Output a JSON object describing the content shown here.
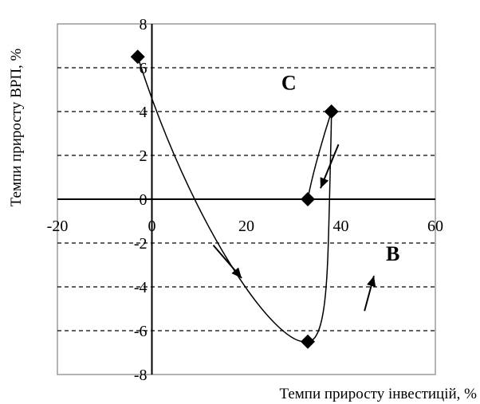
{
  "chart_data": {
    "type": "scatter",
    "xlabel": "Темпи приросту інвестицій, %",
    "ylabel": "Темпи приросту ВРП, %",
    "xlim": [
      -20,
      60
    ],
    "ylim": [
      -8,
      8
    ],
    "x_ticks": [
      "-20",
      "0",
      "20",
      "40",
      "60"
    ],
    "y_ticks": [
      "8",
      "6",
      "4",
      "2",
      "0",
      "-2",
      "-4",
      "-6",
      "-8"
    ],
    "grid": "horizontal dashed",
    "series": [
      {
        "points": [
          {
            "x": -3,
            "y": 6.5
          },
          {
            "x": 33,
            "y": -6.5
          },
          {
            "x": 38,
            "y": 4
          },
          {
            "x": 33,
            "y": 0
          }
        ]
      }
    ],
    "annotations": [
      {
        "text": "C",
        "x": 29,
        "y": 5
      },
      {
        "text": "B",
        "x": 51,
        "y": -2.8
      }
    ],
    "colors": {
      "line": "#000000",
      "grid": "#000000",
      "marker": "#000000"
    }
  }
}
